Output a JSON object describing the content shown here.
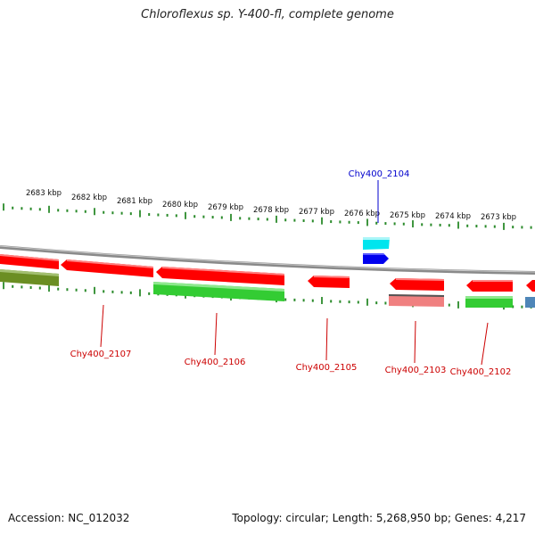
{
  "title": "Chloroflexus sp. Y-400-fl, complete genome",
  "footer": {
    "accession": "Accession: NC_012032",
    "info": "Topology: circular; Length: 5,268,950 bp; Genes: 4,217"
  },
  "colors": {
    "backbone": "#8a8a8a",
    "tick": "#2a8a2a",
    "red": "#ff0000",
    "green": "#33cc33",
    "olive": "#6b8e23",
    "cyan": "#00e5ee",
    "blue": "#0000ee",
    "pink": "#f08080",
    "steelblue": "#4f86b8",
    "label_red": "#cc0000",
    "label_blue": "#0000cc"
  },
  "scale_labels": [
    "2683 kbp",
    "2682 kbp",
    "2681 kbp",
    "2680 kbp",
    "2679 kbp",
    "2678 kbp",
    "2677 kbp",
    "2676 kbp",
    "2675 kbp",
    "2674 kbp",
    "2673 kbp"
  ],
  "gene_labels": [
    {
      "text": "Chy400_2107",
      "color": "red"
    },
    {
      "text": "Chy400_2106",
      "color": "red"
    },
    {
      "text": "Chy400_2105",
      "color": "red"
    },
    {
      "text": "Chy400_2104",
      "color": "blue"
    },
    {
      "text": "Chy400_2103",
      "color": "red"
    },
    {
      "text": "Chy400_2102",
      "color": "red"
    }
  ]
}
